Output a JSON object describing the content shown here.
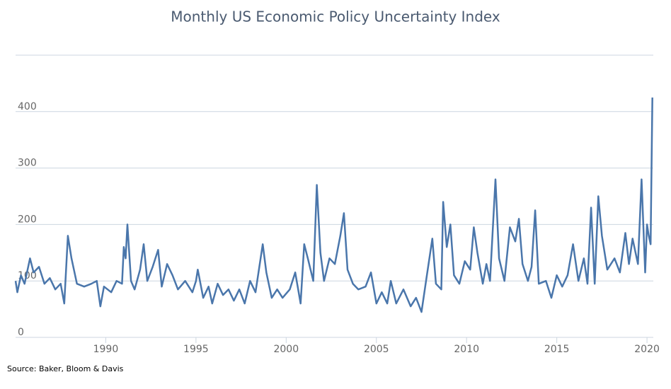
{
  "chart_data": {
    "type": "line",
    "title": "Monthly US Economic Policy Uncertainty Index",
    "source": "Source: Baker, Bloom & Davis",
    "color": "#4a76ab",
    "x": [
      1985.0,
      1985.1,
      1985.3,
      1985.5,
      1985.8,
      1986.0,
      1986.3,
      1986.6,
      1986.9,
      1987.2,
      1987.5,
      1987.7,
      1987.9,
      1988.1,
      1988.4,
      1988.8,
      1989.2,
      1989.5,
      1989.7,
      1989.9,
      1990.3,
      1990.6,
      1990.9,
      1991.0,
      1991.1,
      1991.2,
      1991.4,
      1991.6,
      1991.9,
      1992.1,
      1992.3,
      1992.6,
      1992.9,
      1993.1,
      1993.4,
      1993.7,
      1994.0,
      1994.4,
      1994.8,
      1995.0,
      1995.1,
      1995.4,
      1995.7,
      1995.9,
      1996.2,
      1996.5,
      1996.8,
      1997.1,
      1997.4,
      1997.7,
      1998.0,
      1998.3,
      1998.7,
      1998.9,
      1999.2,
      1999.5,
      1999.8,
      2000.2,
      2000.5,
      2000.8,
      2001.0,
      2001.2,
      2001.5,
      2001.7,
      2001.9,
      2002.1,
      2002.4,
      2002.7,
      2003.0,
      2003.2,
      2003.4,
      2003.7,
      2004.0,
      2004.4,
      2004.7,
      2005.0,
      2005.3,
      2005.6,
      2005.8,
      2006.1,
      2006.5,
      2006.9,
      2007.2,
      2007.5,
      2007.8,
      2008.1,
      2008.3,
      2008.6,
      2008.7,
      2008.9,
      2009.1,
      2009.3,
      2009.6,
      2009.9,
      2010.2,
      2010.4,
      2010.6,
      2010.9,
      2011.1,
      2011.3,
      2011.6,
      2011.8,
      2012.1,
      2012.4,
      2012.7,
      2012.9,
      2013.1,
      2013.4,
      2013.6,
      2013.8,
      2014.0,
      2014.4,
      2014.7,
      2015.0,
      2015.3,
      2015.6,
      2015.9,
      2016.2,
      2016.5,
      2016.7,
      2016.9,
      2017.1,
      2017.3,
      2017.5,
      2017.8,
      2018.2,
      2018.5,
      2018.8,
      2019.0,
      2019.2,
      2019.5,
      2019.7,
      2019.9,
      2020.0,
      2020.1,
      2020.2,
      2020.3
    ],
    "values": [
      100,
      80,
      110,
      95,
      140,
      115,
      125,
      95,
      105,
      85,
      95,
      60,
      180,
      140,
      95,
      90,
      95,
      100,
      55,
      90,
      80,
      100,
      95,
      160,
      140,
      200,
      100,
      85,
      120,
      165,
      100,
      125,
      155,
      90,
      130,
      110,
      85,
      100,
      80,
      100,
      120,
      70,
      90,
      60,
      95,
      75,
      85,
      65,
      85,
      60,
      100,
      80,
      165,
      115,
      70,
      85,
      70,
      85,
      115,
      60,
      165,
      140,
      100,
      270,
      150,
      100,
      140,
      130,
      180,
      220,
      120,
      95,
      85,
      90,
      115,
      60,
      80,
      60,
      100,
      60,
      85,
      55,
      70,
      45,
      110,
      175,
      95,
      85,
      240,
      160,
      200,
      110,
      95,
      135,
      120,
      195,
      150,
      95,
      130,
      100,
      280,
      140,
      100,
      195,
      170,
      210,
      130,
      100,
      125,
      225,
      95,
      100,
      70,
      110,
      90,
      110,
      165,
      100,
      140,
      95,
      230,
      95,
      250,
      180,
      120,
      140,
      115,
      185,
      130,
      175,
      130,
      280,
      115,
      200,
      180,
      165,
      425
    ],
    "xlim": [
      1985,
      2020.35
    ],
    "xticks": [
      1990,
      1995,
      2000,
      2005,
      2010,
      2015,
      2020
    ],
    "ylim": [
      0,
      500
    ],
    "yticks": [
      0,
      100,
      200,
      300,
      400
    ],
    "grid": true
  }
}
